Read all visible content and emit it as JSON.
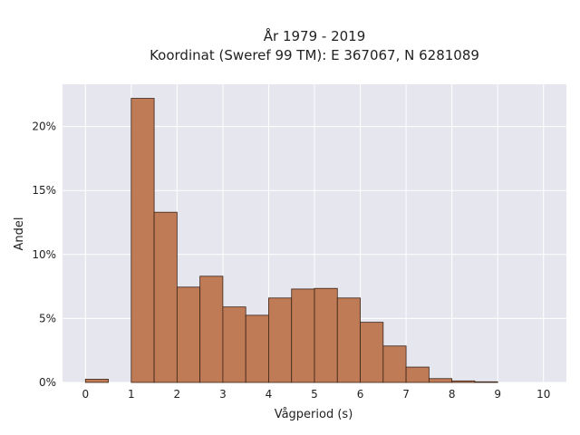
{
  "chart_data": {
    "type": "bar",
    "title_line1": "År 1979 - 2019",
    "title_line2": "Koordinat (Sweref 99 TM): E 367067, N 6281089",
    "xlabel": "Vågperiod (s)",
    "ylabel": "Andel",
    "bin_width": 0.5,
    "bin_starts": [
      0,
      0.5,
      1,
      1.5,
      2,
      2.5,
      3,
      3.5,
      4,
      4.5,
      5,
      5.5,
      6,
      6.5,
      7,
      7.5,
      8,
      8.5,
      9,
      9.5
    ],
    "values": [
      0.25,
      0,
      22.2,
      13.3,
      7.45,
      8.3,
      5.9,
      5.25,
      6.6,
      7.3,
      7.35,
      6.6,
      4.7,
      2.85,
      1.2,
      0.3,
      0.12,
      0.05,
      0,
      0
    ],
    "x_ticks": [
      0,
      1,
      2,
      3,
      4,
      5,
      6,
      7,
      8,
      9,
      10
    ],
    "y_ticks": [
      0,
      5,
      10,
      15,
      20
    ],
    "y_tick_labels": [
      "0%",
      "5%",
      "10%",
      "15%",
      "20%"
    ],
    "xlim": [
      -0.5,
      10.5
    ],
    "ylim": [
      0,
      23.3
    ],
    "grid": true,
    "bar_color": "#bf7a56",
    "bar_edge_color": "#3a2418",
    "plot_background": "#e6e6ee",
    "grid_color": "#ffffff"
  }
}
